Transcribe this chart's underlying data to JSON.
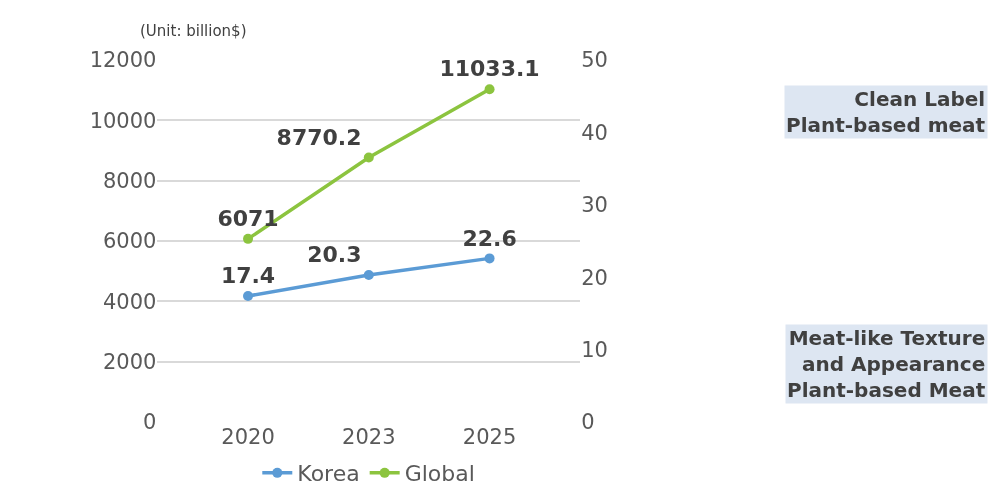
{
  "chart_data": {
    "type": "line",
    "categories": [
      "2020",
      "2023",
      "2025"
    ],
    "series": [
      {
        "name": "Korea",
        "color": "#5b9bd5",
        "values": [
          17.4,
          20.3,
          22.6
        ],
        "axis": "y2"
      },
      {
        "name": "Global",
        "color": "#8cc43f",
        "values": [
          6071,
          8770.2,
          11033.1
        ]
      }
    ],
    "ylim": [
      0,
      12000
    ],
    "yticks": [
      0,
      2000,
      4000,
      6000,
      8000,
      10000,
      12000
    ],
    "y2lim": [
      0,
      50
    ],
    "y2ticks": [
      0,
      10,
      20,
      30,
      40,
      50
    ],
    "grid": "y",
    "legend": "bottom",
    "marker": "circle",
    "line_style": "solid",
    "data_labels": true,
    "annotations": [
      "(Unit: billion$)",
      "Clean Label\nPlant-based meat",
      "Meat-like Texture\nand Appearance\nPlant-based Meat"
    ]
  }
}
